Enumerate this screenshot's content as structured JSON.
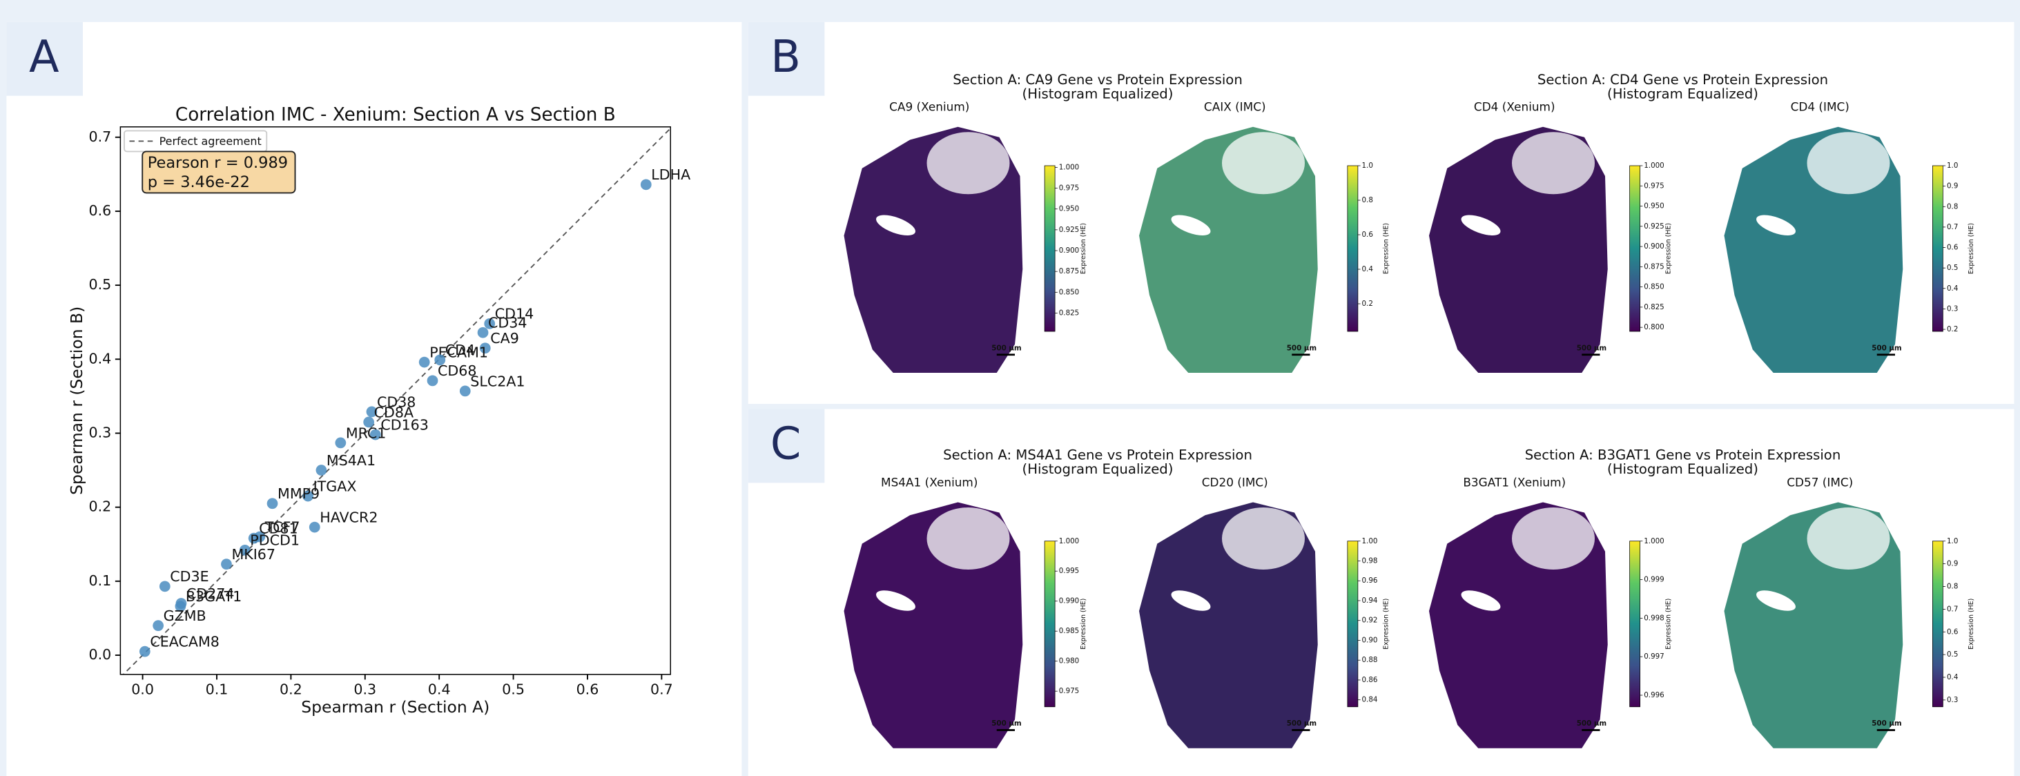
{
  "panel_labels": [
    "A",
    "B",
    "C"
  ],
  "chart_data": [
    {
      "type": "scatter",
      "title": "Correlation IMC - Xenium: Section A vs Section B",
      "xlabel": "Spearman r (Section A)",
      "ylabel": "Spearman r (Section B)",
      "labels": [
        "LDHA",
        "CD14",
        "CD34",
        "CA9",
        "PECAM1",
        "CD4",
        "CD68",
        "SLC2A1",
        "CD38",
        "CD8A",
        "CD163",
        "MRC1",
        "MS4A1",
        "ITGAX",
        "MMP9",
        "HAVCR2",
        "TCF7",
        "CD81",
        "PDCD1",
        "MKI67",
        "CD3E",
        "CD274",
        "B3GAT1",
        "GZMB",
        "CEACAM8"
      ],
      "x": [
        0.679,
        0.468,
        0.459,
        0.462,
        0.38,
        0.401,
        0.391,
        0.435,
        0.309,
        0.305,
        0.314,
        0.267,
        0.241,
        0.223,
        0.175,
        0.232,
        0.158,
        0.15,
        0.138,
        0.113,
        0.03,
        0.052,
        0.051,
        0.021,
        0.003
      ],
      "values": [
        0.636,
        0.448,
        0.436,
        0.415,
        0.396,
        0.399,
        0.371,
        0.357,
        0.329,
        0.315,
        0.298,
        0.287,
        0.25,
        0.215,
        0.205,
        0.173,
        0.16,
        0.158,
        0.142,
        0.123,
        0.093,
        0.07,
        0.066,
        0.04,
        0.005
      ],
      "color": "#4a8cc0",
      "xlim": [
        -0.03,
        0.712
      ],
      "ylim": [
        -0.026,
        0.714
      ],
      "xticks": [
        {
          "value": 0,
          "label": "0.0"
        },
        0.1,
        0.2,
        0.3,
        0.4,
        0.5,
        0.6,
        0.7
      ],
      "yticks": [
        {
          "value": 0,
          "label": "0.0"
        },
        0.1,
        0.2,
        0.3,
        0.4,
        0.5,
        0.6,
        0.7
      ],
      "reference_line": "Perfect agreement",
      "annotation": [
        "Pearson r = 0.989",
        "p = 3.46e-22"
      ]
    },
    {
      "type": "image",
      "colorbar_label": "Expression (HE)",
      "scale_bar": "500 µm",
      "pairs": [
        {
          "title": [
            "Section A: CA9 Gene vs Protein Expression",
            "(Histogram Equalized)"
          ],
          "images": [
            {
              "label": "CA9 (Xenium)",
              "color": "#3d1a5e",
              "clim": [
                0.803,
                1.002
              ],
              "ticks": [
                {
                  "value": 1,
                  "label": "1.000"
                },
                0.975,
                {
                  "value": 0.95,
                  "label": "0.950"
                },
                0.925,
                {
                  "value": 0.9,
                  "label": "0.900"
                },
                0.875,
                {
                  "value": 0.85,
                  "label": "0.850"
                },
                0.825
              ]
            },
            {
              "label": "CAIX (IMC)",
              "color": "#4f9a78",
              "clim": [
                0.04,
                1.0
              ],
              "ticks": [
                {
                  "value": 1,
                  "label": "1.0"
                },
                0.8,
                0.6,
                0.4,
                0.2
              ]
            }
          ]
        },
        {
          "title": [
            "Section A: CD4 Gene vs Protein Expression",
            "(Histogram Equalized)"
          ],
          "images": [
            {
              "label": "CD4 (Xenium)",
              "color": "#3a1558",
              "clim": [
                0.795,
                1.0
              ],
              "ticks": [
                {
                  "value": 1,
                  "label": "1.000"
                },
                0.975,
                {
                  "value": 0.95,
                  "label": "0.950"
                },
                0.925,
                {
                  "value": 0.9,
                  "label": "0.900"
                },
                0.875,
                {
                  "value": 0.85,
                  "label": "0.850"
                },
                0.825,
                {
                  "value": 0.8,
                  "label": "0.800"
                }
              ]
            },
            {
              "label": "CD4 (IMC)",
              "color": "#2f7f86",
              "clim": [
                0.19,
                1.0
              ],
              "ticks": [
                {
                  "value": 1,
                  "label": "1.0"
                },
                0.9,
                0.8,
                0.7,
                0.6,
                0.5,
                0.4,
                0.3,
                0.2
              ]
            }
          ]
        }
      ]
    },
    {
      "type": "image",
      "colorbar_label": "Expression (HE)",
      "scale_bar": "500 µm",
      "pairs": [
        {
          "title": [
            "Section A: MS4A1 Gene vs Protein Expression",
            "(Histogram Equalized)"
          ],
          "images": [
            {
              "label": "MS4A1 (Xenium)",
              "color": "#40105e",
              "clim": [
                0.9724,
                1.0
              ],
              "ticks": [
                {
                  "value": 1,
                  "label": "1.000"
                },
                0.995,
                {
                  "value": 0.99,
                  "label": "0.990"
                },
                0.985,
                {
                  "value": 0.98,
                  "label": "0.980"
                },
                0.975
              ]
            },
            {
              "label": "CD20 (IMC)",
              "color": "#34245e",
              "clim": [
                0.833,
                1.0
              ],
              "ticks": [
                {
                  "value": 1,
                  "label": "1.00"
                },
                0.98,
                0.96,
                0.94,
                0.92,
                {
                  "value": 0.9,
                  "label": "0.90"
                },
                0.88,
                0.86,
                0.84
              ]
            }
          ]
        },
        {
          "title": [
            "Section A: B3GAT1 Gene vs Protein Expression",
            "(Histogram Equalized)"
          ],
          "images": [
            {
              "label": "B3GAT1 (Xenium)",
              "color": "#3f0f5c",
              "clim": [
                0.9957,
                1.0
              ],
              "ticks": [
                {
                  "value": 1,
                  "label": "1.000"
                },
                0.999,
                0.998,
                0.997,
                0.996
              ]
            },
            {
              "label": "CD57 (IMC)",
              "color": "#3f8f7c",
              "clim": [
                0.27,
                1.0
              ],
              "ticks": [
                {
                  "value": 1,
                  "label": "1.0"
                },
                0.9,
                0.8,
                0.7,
                0.6,
                0.5,
                0.4,
                0.3
              ]
            }
          ]
        }
      ]
    }
  ]
}
